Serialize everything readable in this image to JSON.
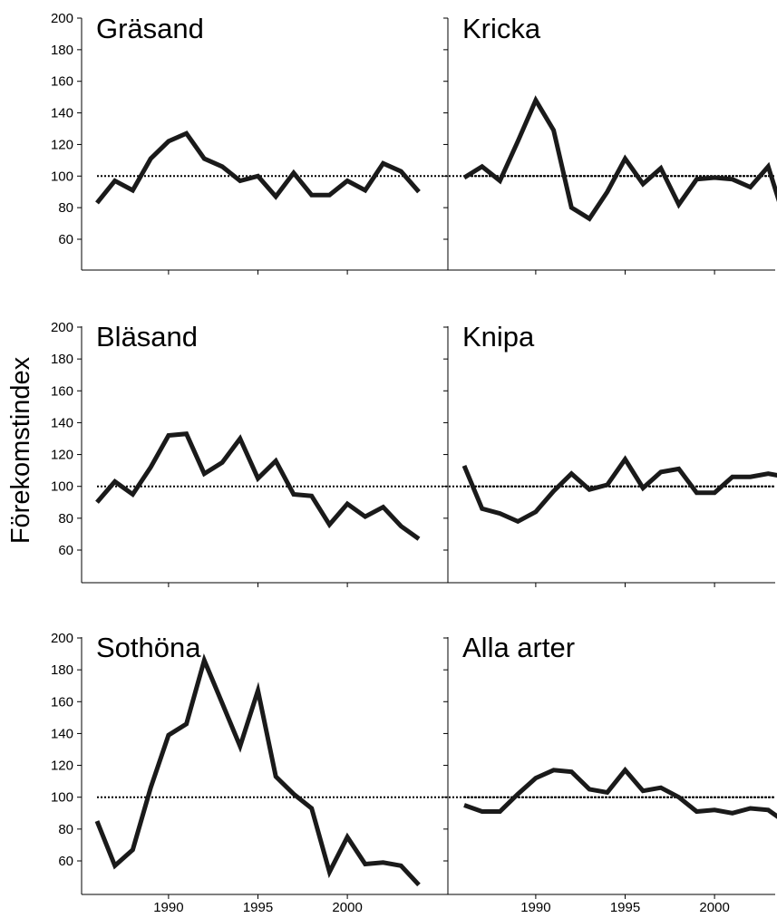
{
  "figure": {
    "ylabel": "Förekomstindex"
  },
  "chart_data": [
    {
      "type": "line",
      "title": "Gräsand",
      "x": [
        1986,
        1987,
        1988,
        1989,
        1990,
        1991,
        1992,
        1993,
        1994,
        1995,
        1996,
        1997,
        1998,
        1999,
        2000,
        2001,
        2002,
        2003,
        2004
      ],
      "values": [
        83,
        97,
        91,
        111,
        122,
        127,
        111,
        106,
        97,
        100,
        87,
        102,
        88,
        88,
        97,
        91,
        108,
        103,
        90
      ],
      "reference": 100,
      "ylim": [
        40,
        200
      ],
      "yticks": [
        60,
        80,
        100,
        120,
        140,
        160,
        180,
        200
      ],
      "xticks": [
        1990,
        1995,
        2000
      ],
      "show_y_labels": true,
      "show_x_labels": false
    },
    {
      "type": "line",
      "title": "Kricka",
      "x": [
        1986,
        1987,
        1988,
        1989,
        1990,
        1991,
        1992,
        1993,
        1994,
        1995,
        1996,
        1997,
        1998,
        1999,
        2000,
        2001,
        2002,
        2003,
        2004
      ],
      "values": [
        99,
        106,
        97,
        122,
        148,
        129,
        80,
        73,
        90,
        111,
        95,
        105,
        82,
        98,
        99,
        98,
        93,
        106,
        70
      ],
      "reference": 100,
      "ylim": [
        40,
        200
      ],
      "yticks": [
        60,
        80,
        100,
        120,
        140,
        160,
        180,
        200
      ],
      "xticks": [
        1990,
        1995,
        2000
      ],
      "show_y_labels": false,
      "show_x_labels": false
    },
    {
      "type": "line",
      "title": "Bläsand",
      "x": [
        1986,
        1987,
        1988,
        1989,
        1990,
        1991,
        1992,
        1993,
        1994,
        1995,
        1996,
        1997,
        1998,
        1999,
        2000,
        2001,
        2002,
        2003,
        2004
      ],
      "values": [
        90,
        103,
        95,
        112,
        132,
        133,
        108,
        115,
        130,
        105,
        116,
        95,
        94,
        76,
        89,
        81,
        87,
        75,
        67
      ],
      "reference": 100,
      "ylim": [
        40,
        200
      ],
      "yticks": [
        60,
        80,
        100,
        120,
        140,
        160,
        180,
        200
      ],
      "xticks": [
        1990,
        1995,
        2000
      ],
      "show_y_labels": true,
      "show_x_labels": false
    },
    {
      "type": "line",
      "title": "Knipa",
      "x": [
        1986,
        1987,
        1988,
        1989,
        1990,
        1991,
        1992,
        1993,
        1994,
        1995,
        1996,
        1997,
        1998,
        1999,
        2000,
        2001,
        2002,
        2003,
        2004
      ],
      "values": [
        113,
        86,
        83,
        78,
        84,
        97,
        108,
        98,
        101,
        117,
        99,
        109,
        111,
        96,
        96,
        106,
        106,
        108,
        106
      ],
      "reference": 100,
      "ylim": [
        40,
        200
      ],
      "yticks": [
        60,
        80,
        100,
        120,
        140,
        160,
        180,
        200
      ],
      "xticks": [
        1990,
        1995,
        2000
      ],
      "show_y_labels": false,
      "show_x_labels": false
    },
    {
      "type": "line",
      "title": "Sothöna",
      "x": [
        1986,
        1987,
        1988,
        1989,
        1990,
        1991,
        1992,
        1993,
        1994,
        1995,
        1996,
        1997,
        1998,
        1999,
        2000,
        2001,
        2002,
        2003,
        2004
      ],
      "values": [
        85,
        57,
        67,
        106,
        139,
        146,
        186,
        159,
        132,
        167,
        113,
        102,
        93,
        53,
        75,
        58,
        59,
        57,
        45
      ],
      "reference": 100,
      "ylim": [
        40,
        200
      ],
      "yticks": [
        60,
        80,
        100,
        120,
        140,
        160,
        180,
        200
      ],
      "xticks": [
        1990,
        1995,
        2000
      ],
      "show_y_labels": true,
      "show_x_labels": true
    },
    {
      "type": "line",
      "title": "Alla arter",
      "x": [
        1986,
        1987,
        1988,
        1989,
        1990,
        1991,
        1992,
        1993,
        1994,
        1995,
        1996,
        1997,
        1998,
        1999,
        2000,
        2001,
        2002,
        2003,
        2004
      ],
      "values": [
        95,
        91,
        91,
        102,
        112,
        117,
        116,
        105,
        103,
        117,
        104,
        106,
        100,
        91,
        92,
        90,
        93,
        92,
        84
      ],
      "reference": 100,
      "ylim": [
        40,
        200
      ],
      "yticks": [
        60,
        80,
        100,
        120,
        140,
        160,
        180,
        200
      ],
      "xticks": [
        1990,
        1995,
        2000
      ],
      "show_y_labels": false,
      "show_x_labels": true
    }
  ]
}
